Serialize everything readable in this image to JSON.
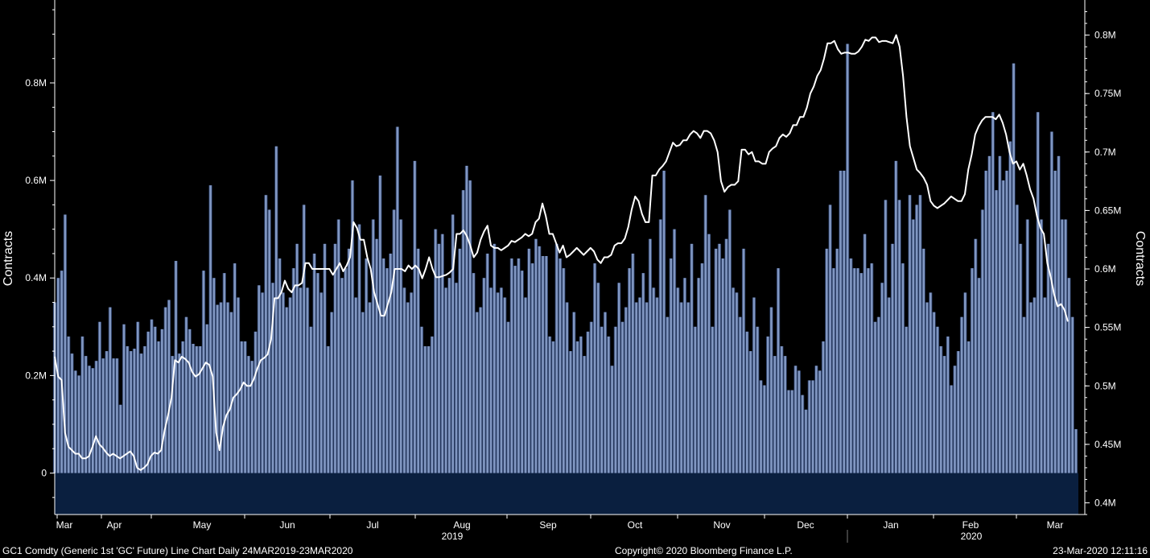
{
  "footer": {
    "left": "GC1 Comdty (Generic 1st 'GC' Future) Line Chart  Daily 24MAR2019-23MAR2020",
    "center": "Copyright© 2020 Bloomberg Finance L.P.",
    "right": "23-Mar-2020 12:11:16"
  },
  "colors": {
    "background": "#000000",
    "bars": "#8197c2",
    "bar_outline": "#24365c",
    "bar_base": "#0a1f3f",
    "line": "#ffffff",
    "axis": "#ffffff"
  },
  "chart_data": {
    "type": "bar",
    "title": "",
    "xlabel": "",
    "ylabel": "Contracts",
    "ylabel_right": "Contracts",
    "x_tick_labels": [
      "Mar",
      "Apr",
      "May",
      "Jun",
      "Jul",
      "Aug",
      "Sep",
      "Oct",
      "Nov",
      "Dec",
      "Jan",
      "Feb",
      "Mar"
    ],
    "year_labels": [
      "2019",
      "2020"
    ],
    "left_axis": {
      "ylim": [
        -85000,
        970000
      ],
      "ticks": [
        0,
        200000,
        400000,
        600000,
        800000
      ],
      "tick_labels": [
        "0",
        "0.2M",
        "0.4M",
        "0.6M",
        "0.8M"
      ]
    },
    "right_axis": {
      "ylim": [
        0.39,
        0.83
      ],
      "ticks": [
        0.4,
        0.45,
        0.5,
        0.55,
        0.6,
        0.65,
        0.7,
        0.75,
        0.8
      ],
      "tick_labels": [
        "0.4M",
        "0.45M",
        "0.5M",
        "0.55M",
        "0.6M",
        "0.65M",
        "0.7M",
        "0.75M",
        "0.8M"
      ]
    },
    "grid": false,
    "series": [
      {
        "type": "bar",
        "axis": "left",
        "values": [
          350000,
          400000,
          415000,
          530000,
          280000,
          245000,
          210000,
          200000,
          280000,
          240000,
          220000,
          215000,
          230000,
          310000,
          235000,
          250000,
          340000,
          235000,
          235000,
          140000,
          305000,
          260000,
          250000,
          255000,
          310000,
          245000,
          260000,
          290000,
          315000,
          300000,
          270000,
          295000,
          340000,
          355000,
          240000,
          435000,
          245000,
          270000,
          320000,
          295000,
          265000,
          260000,
          260000,
          415000,
          305000,
          590000,
          400000,
          345000,
          350000,
          410000,
          350000,
          330000,
          430000,
          360000,
          270000,
          270000,
          240000,
          230000,
          290000,
          385000,
          370000,
          570000,
          540000,
          390000,
          670000,
          440000,
          370000,
          340000,
          360000,
          420000,
          470000,
          380000,
          550000,
          380000,
          300000,
          450000,
          410000,
          370000,
          470000,
          260000,
          330000,
          470000,
          520000,
          400000,
          420000,
          460000,
          600000,
          360000,
          510000,
          330000,
          440000,
          350000,
          520000,
          480000,
          610000,
          440000,
          420000,
          450000,
          540000,
          710000,
          520000,
          380000,
          350000,
          370000,
          640000,
          460000,
          300000,
          260000,
          260000,
          280000,
          500000,
          470000,
          490000,
          380000,
          400000,
          530000,
          390000,
          460000,
          580000,
          630000,
          600000,
          410000,
          330000,
          340000,
          400000,
          450000,
          380000,
          470000,
          370000,
          380000,
          360000,
          310000,
          440000,
          425000,
          440000,
          415000,
          360000,
          460000,
          430000,
          480000,
          465000,
          445000,
          445000,
          280000,
          270000,
          470000,
          440000,
          420000,
          350000,
          250000,
          330000,
          270000,
          280000,
          240000,
          290000,
          310000,
          430000,
          390000,
          300000,
          330000,
          280000,
          220000,
          300000,
          390000,
          310000,
          340000,
          420000,
          450000,
          350000,
          360000,
          410000,
          350000,
          480000,
          380000,
          360000,
          520000,
          620000,
          320000,
          440000,
          500000,
          380000,
          350000,
          400000,
          350000,
          470000,
          300000,
          400000,
          430000,
          570000,
          490000,
          300000,
          460000,
          470000,
          440000,
          480000,
          540000,
          380000,
          370000,
          320000,
          460000,
          290000,
          250000,
          360000,
          300000,
          190000,
          180000,
          280000,
          340000,
          240000,
          420000,
          260000,
          240000,
          170000,
          170000,
          220000,
          210000,
          160000,
          130000,
          190000,
          190000,
          220000,
          210000,
          270000,
          460000,
          550000,
          420000,
          460000,
          620000,
          620000,
          880000,
          440000,
          420000,
          420000,
          410000,
          490000,
          420000,
          430000,
          310000,
          320000,
          390000,
          560000,
          360000,
          470000,
          640000,
          560000,
          430000,
          300000,
          570000,
          520000,
          550000,
          570000,
          460000,
          350000,
          370000,
          330000,
          300000,
          260000,
          240000,
          280000,
          180000,
          220000,
          250000,
          320000,
          370000,
          270000,
          420000,
          480000,
          400000,
          540000,
          620000,
          650000,
          740000,
          580000,
          650000,
          600000,
          620000,
          680000,
          840000,
          550000,
          470000,
          320000,
          520000,
          350000,
          360000,
          740000,
          520000,
          360000,
          470000,
          700000,
          620000,
          650000,
          520000,
          520000,
          400000,
          320000,
          90000
        ]
      },
      {
        "type": "line",
        "axis": "right",
        "values": [
          0.525,
          0.508,
          0.505,
          0.46,
          0.448,
          0.445,
          0.442,
          0.442,
          0.438,
          0.438,
          0.44,
          0.448,
          0.457,
          0.45,
          0.447,
          0.443,
          0.44,
          0.442,
          0.44,
          0.438,
          0.44,
          0.442,
          0.444,
          0.44,
          0.43,
          0.428,
          0.43,
          0.433,
          0.44,
          0.443,
          0.442,
          0.445,
          0.462,
          0.475,
          0.49,
          0.522,
          0.52,
          0.525,
          0.523,
          0.52,
          0.512,
          0.508,
          0.51,
          0.515,
          0.52,
          0.518,
          0.508,
          0.46,
          0.445,
          0.465,
          0.475,
          0.48,
          0.49,
          0.493,
          0.497,
          0.503,
          0.5,
          0.5,
          0.506,
          0.515,
          0.522,
          0.524,
          0.527,
          0.54,
          0.575,
          0.575,
          0.58,
          0.59,
          0.583,
          0.58,
          0.586,
          0.586,
          0.588,
          0.605,
          0.605,
          0.6,
          0.6,
          0.6,
          0.6,
          0.6,
          0.6,
          0.595,
          0.6,
          0.605,
          0.598,
          0.603,
          0.61,
          0.64,
          0.635,
          0.625,
          0.625,
          0.61,
          0.6,
          0.58,
          0.57,
          0.56,
          0.56,
          0.57,
          0.58,
          0.6,
          0.6,
          0.6,
          0.598,
          0.603,
          0.6,
          0.603,
          0.6,
          0.592,
          0.6,
          0.61,
          0.6,
          0.593,
          0.593,
          0.594,
          0.595,
          0.597,
          0.6,
          0.63,
          0.63,
          0.633,
          0.628,
          0.62,
          0.61,
          0.614,
          0.625,
          0.632,
          0.637,
          0.62,
          0.618,
          0.618,
          0.616,
          0.618,
          0.62,
          0.624,
          0.623,
          0.625,
          0.627,
          0.63,
          0.628,
          0.63,
          0.64,
          0.643,
          0.656,
          0.645,
          0.63,
          0.63,
          0.622,
          0.614,
          0.62,
          0.61,
          0.612,
          0.615,
          0.618,
          0.615,
          0.612,
          0.615,
          0.618,
          0.615,
          0.608,
          0.605,
          0.61,
          0.61,
          0.612,
          0.62,
          0.622,
          0.622,
          0.626,
          0.636,
          0.651,
          0.662,
          0.658,
          0.647,
          0.64,
          0.64,
          0.68,
          0.68,
          0.685,
          0.688,
          0.692,
          0.7,
          0.708,
          0.705,
          0.706,
          0.71,
          0.71,
          0.715,
          0.718,
          0.716,
          0.712,
          0.718,
          0.718,
          0.716,
          0.71,
          0.7,
          0.675,
          0.666,
          0.67,
          0.672,
          0.672,
          0.675,
          0.702,
          0.702,
          0.698,
          0.7,
          0.692,
          0.692,
          0.69,
          0.69,
          0.7,
          0.703,
          0.705,
          0.712,
          0.715,
          0.713,
          0.716,
          0.723,
          0.723,
          0.73,
          0.73,
          0.738,
          0.75,
          0.756,
          0.765,
          0.77,
          0.78,
          0.793,
          0.793,
          0.795,
          0.788,
          0.784,
          0.785,
          0.785,
          0.784,
          0.784,
          0.786,
          0.79,
          0.796,
          0.795,
          0.798,
          0.798,
          0.794,
          0.795,
          0.795,
          0.794,
          0.793,
          0.8,
          0.79,
          0.765,
          0.73,
          0.705,
          0.695,
          0.685,
          0.682,
          0.678,
          0.672,
          0.658,
          0.654,
          0.652,
          0.654,
          0.656,
          0.659,
          0.662,
          0.66,
          0.658,
          0.658,
          0.664,
          0.685,
          0.698,
          0.715,
          0.722,
          0.727,
          0.73,
          0.73,
          0.73,
          0.728,
          0.732,
          0.725,
          0.715,
          0.7,
          0.69,
          0.692,
          0.685,
          0.69,
          0.68,
          0.668,
          0.66,
          0.645,
          0.635,
          0.63,
          0.605,
          0.593,
          0.578,
          0.568,
          0.57,
          0.565,
          0.555
        ]
      }
    ]
  }
}
